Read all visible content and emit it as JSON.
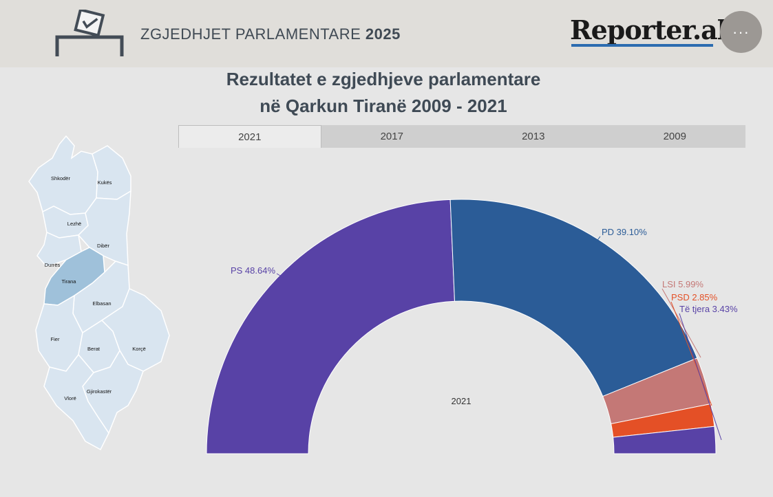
{
  "header": {
    "title_regular": "ZGJEDHJET PARLAMENTARE",
    "title_bold": "2025",
    "logo_text": "Reporter.al",
    "more_button_label": "···"
  },
  "chart_title": {
    "line1": "Rezultatet e zgjedhjeve parlamentare",
    "line2": "në Qarkun Tiranë 2009 - 2021"
  },
  "tabs": [
    {
      "label": "2021",
      "active": true
    },
    {
      "label": "2017",
      "active": false
    },
    {
      "label": "2013",
      "active": false
    },
    {
      "label": "2009",
      "active": false
    }
  ],
  "map": {
    "regions": [
      "Shkodër",
      "Kukës",
      "Lezhë",
      "Dibër",
      "Durrës",
      "Tirana",
      "Elbasan",
      "Fier",
      "Berat",
      "Korçë",
      "Gjirokastër",
      "Vlorë"
    ],
    "highlighted": "Tirana",
    "colors": {
      "region": "#d9e5f0",
      "highlight": "#9fc1da",
      "border": "#ffffff"
    }
  },
  "chart_data": {
    "type": "pie",
    "subtype": "half-donut",
    "center_label": "2021",
    "slices": [
      {
        "label": "PS",
        "value": 48.64,
        "display": "PS 48.64%",
        "color": "#5842a6"
      },
      {
        "label": "PD",
        "value": 39.1,
        "display": "PD 39.10%",
        "color": "#2b5c97"
      },
      {
        "label": "LSI",
        "value": 5.99,
        "display": "LSI 5.99%",
        "color": "#c47876"
      },
      {
        "label": "PSD",
        "value": 2.85,
        "display": "PSD 2.85%",
        "color": "#e45026"
      },
      {
        "label": "Të tjera",
        "value": 3.43,
        "display": "Të tjera 3.43%",
        "color": "#5842a6"
      }
    ]
  }
}
